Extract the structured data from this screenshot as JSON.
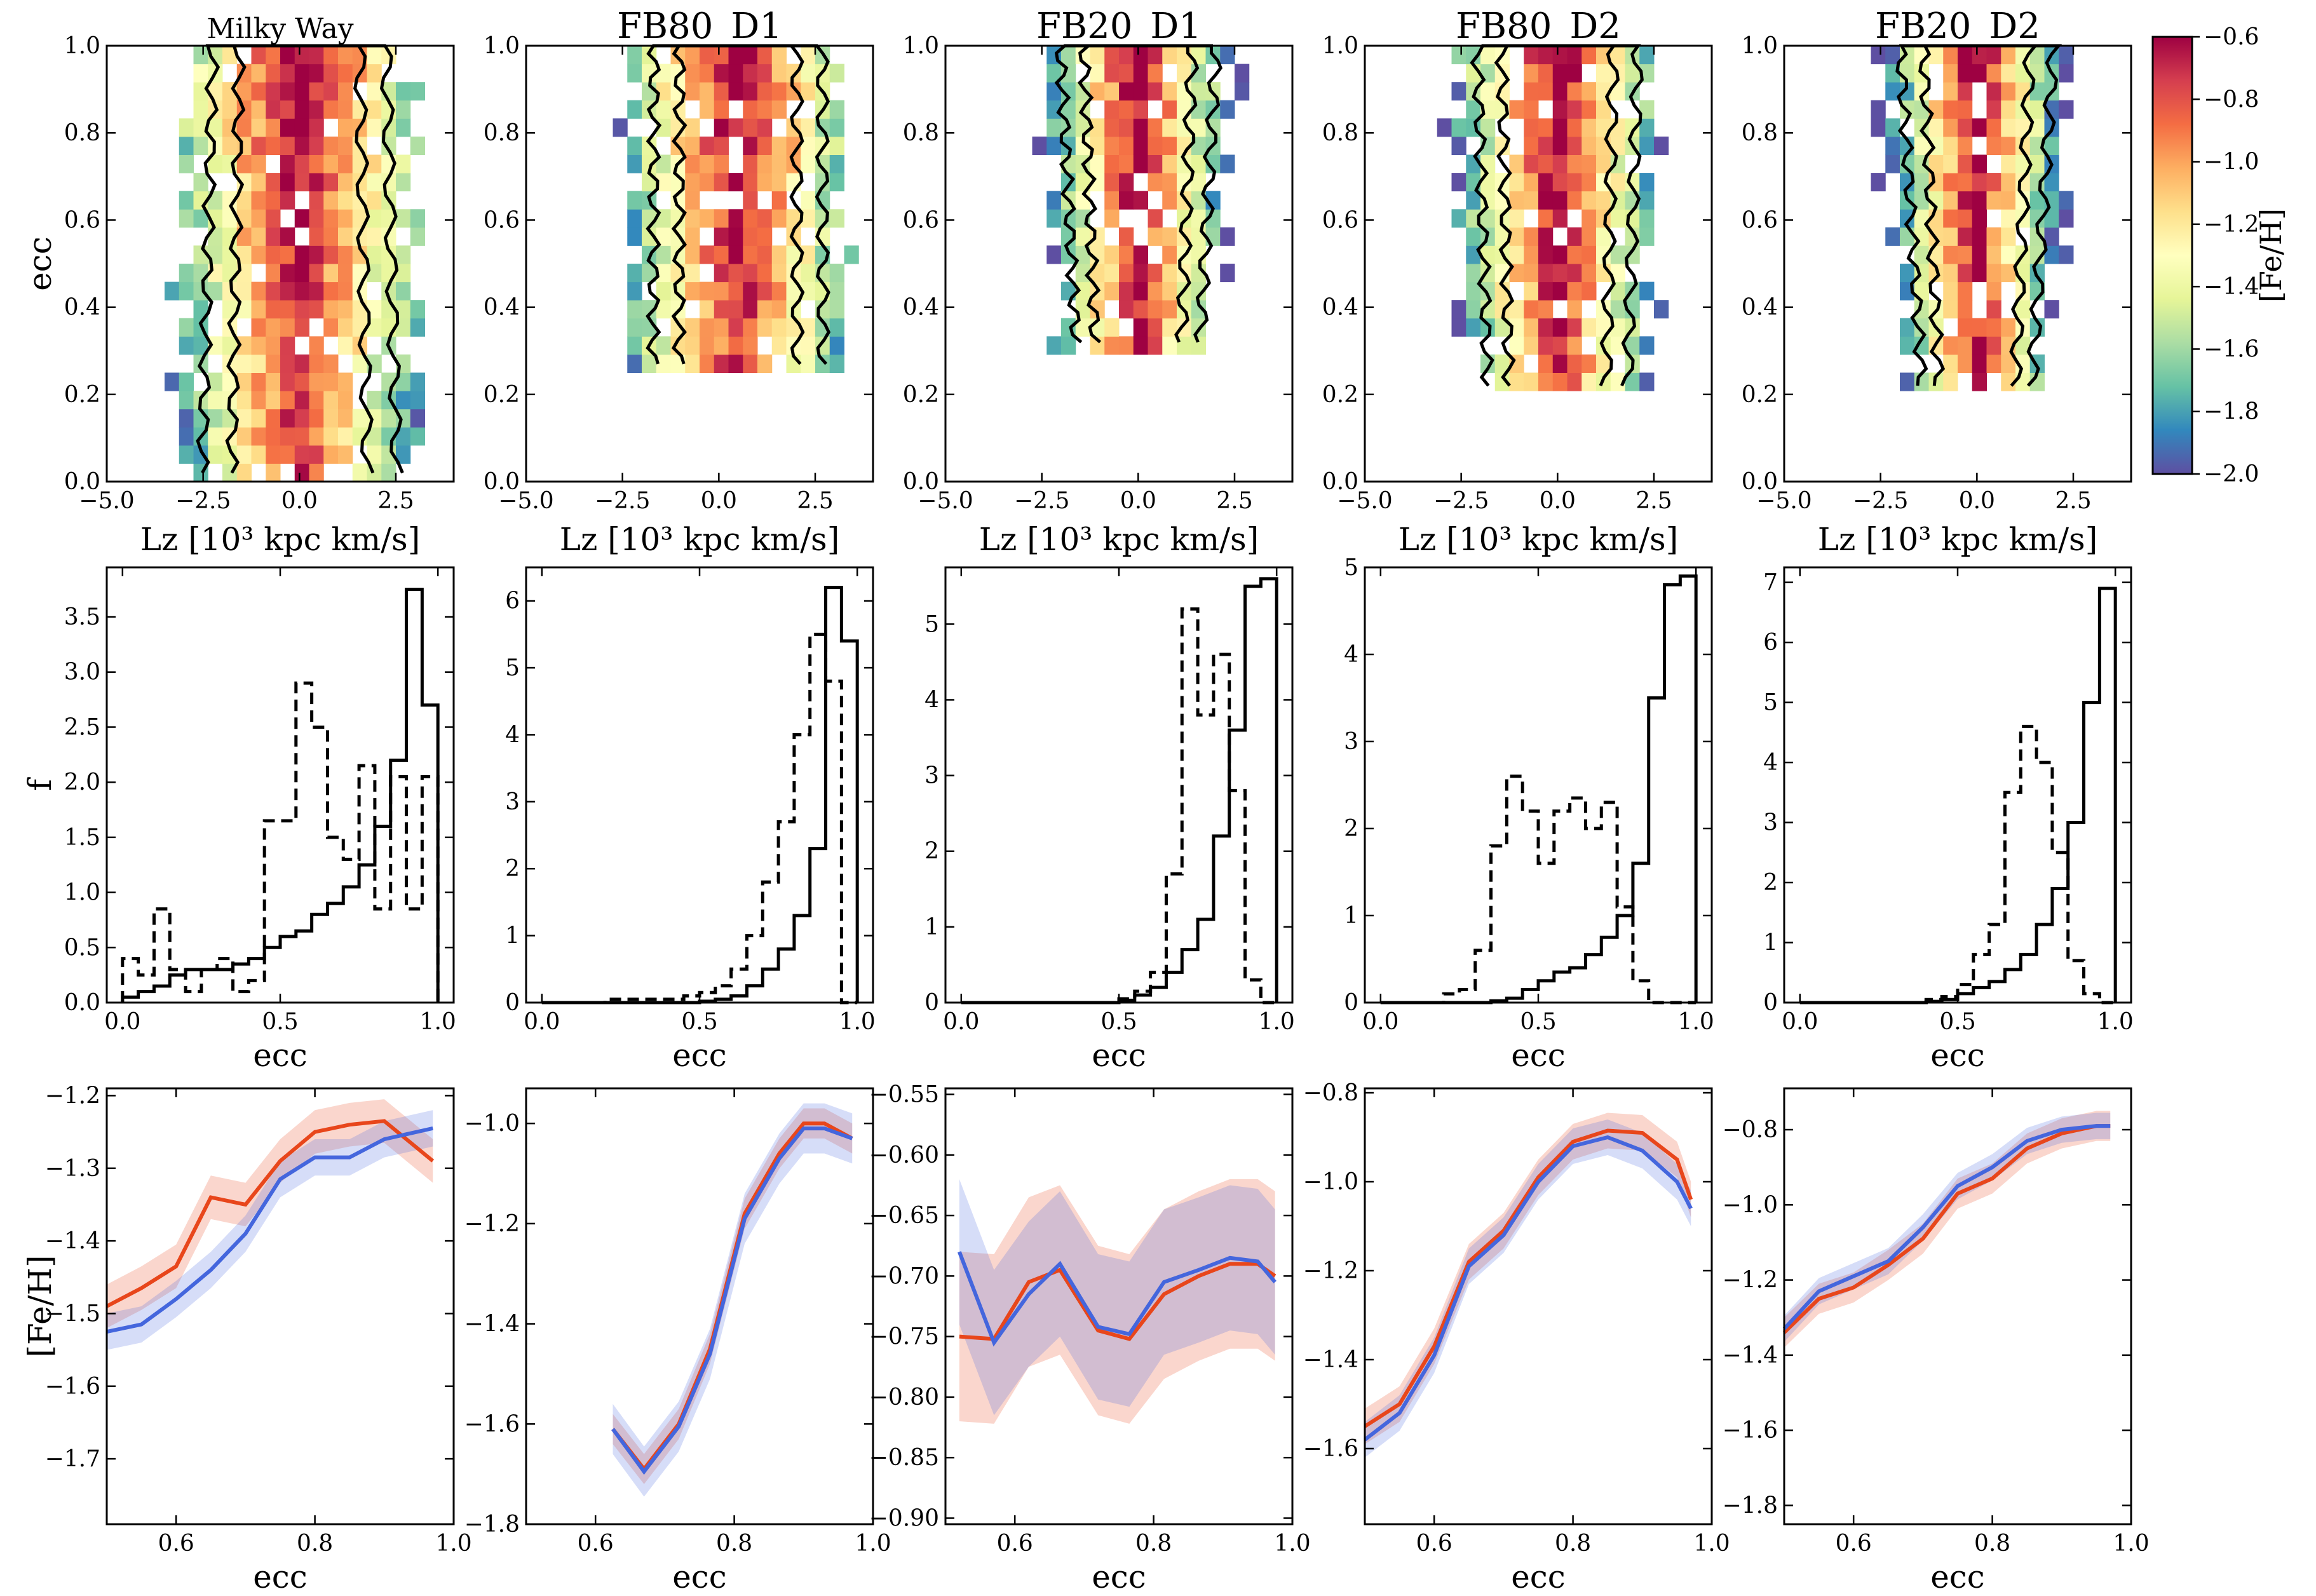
{
  "figure": {
    "colorbar": {
      "label": "[Fe/H]",
      "ticks": [
        "-0.6",
        "-0.8",
        "-1.0",
        "-1.2",
        "-1.4",
        "-1.6",
        "-1.8",
        "-2.0"
      ],
      "range": [
        -2.0,
        -0.6
      ]
    }
  },
  "chart_data": [
    {
      "type": "heatmap",
      "title": "Milky Way",
      "xlabel": "Lz [10³ kpc km/s]",
      "ylabel": "ecc",
      "xlim": [
        -5,
        4
      ],
      "ylim": [
        0,
        1
      ],
      "xticks": [
        "−5.0",
        "−2.5",
        "0.0",
        "2.5"
      ],
      "yticks": [
        "0.0",
        "0.2",
        "0.4",
        "0.6",
        "0.8",
        "1.0"
      ],
      "profile": {
        "center": 0.0,
        "width": 1.6,
        "emin": 0.0
      }
    },
    {
      "type": "heatmap",
      "title": "FB80_D1",
      "xlabel": "Lz [10³ kpc km/s]",
      "ylabel": "",
      "xlim": [
        -5,
        4
      ],
      "ylim": [
        0,
        1
      ],
      "xticks": [
        "−5.0",
        "−2.5",
        "0.0",
        "2.5"
      ],
      "yticks": [
        "0.0",
        "0.2",
        "0.4",
        "0.6",
        "0.8",
        "1.0"
      ],
      "profile": {
        "center": 0.5,
        "width": 1.4,
        "emin": 0.25
      }
    },
    {
      "type": "heatmap",
      "title": "FB20_D1",
      "xlabel": "Lz [10³ kpc km/s]",
      "ylabel": "",
      "xlim": [
        -5,
        4
      ],
      "ylim": [
        0,
        1
      ],
      "xticks": [
        "−5.0",
        "−2.5",
        "0.0",
        "2.5"
      ],
      "yticks": [
        "0.0",
        "0.2",
        "0.4",
        "0.6",
        "0.8",
        "1.0"
      ],
      "profile": {
        "center": 0.0,
        "width": 0.9,
        "emin": 0.3
      }
    },
    {
      "type": "heatmap",
      "title": "FB80_D2",
      "xlabel": "Lz [10³ kpc km/s]",
      "ylabel": "",
      "xlim": [
        -5,
        4
      ],
      "ylim": [
        0,
        1
      ],
      "xticks": [
        "−5.0",
        "−2.5",
        "0.0",
        "2.5"
      ],
      "yticks": [
        "0.0",
        "0.2",
        "0.4",
        "0.6",
        "0.8",
        "1.0"
      ],
      "profile": {
        "center": 0.0,
        "width": 1.1,
        "emin": 0.2
      }
    },
    {
      "type": "heatmap",
      "title": "FB20_D2",
      "xlabel": "Lz [10³ kpc km/s]",
      "ylabel": "",
      "xlim": [
        -5,
        4
      ],
      "ylim": [
        0,
        1
      ],
      "xticks": [
        "−5.0",
        "−2.5",
        "0.0",
        "2.5"
      ],
      "yticks": [
        "0.0",
        "0.2",
        "0.4",
        "0.6",
        "0.8",
        "1.0"
      ],
      "profile": {
        "center": 0.0,
        "width": 0.8,
        "emin": 0.2
      }
    },
    {
      "type": "histogram",
      "xlabel": "ecc",
      "ylabel": "f",
      "xlim": [
        -0.05,
        1.05
      ],
      "ylim": [
        0,
        3.95
      ],
      "xticks": [
        "0.0",
        "0.5",
        "1.0"
      ],
      "yticks": [
        "0.0",
        "0.5",
        "1.0",
        "1.5",
        "2.0",
        "2.5",
        "3.0",
        "3.5"
      ],
      "bin_edges": [
        0.0,
        0.05,
        0.1,
        0.15,
        0.2,
        0.25,
        0.3,
        0.35,
        0.4,
        0.45,
        0.5,
        0.55,
        0.6,
        0.65,
        0.7,
        0.75,
        0.8,
        0.85,
        0.9,
        0.95,
        1.0
      ],
      "series": [
        {
          "name": "solid",
          "style": "solid",
          "values": [
            0.05,
            0.1,
            0.15,
            0.25,
            0.3,
            0.3,
            0.3,
            0.35,
            0.4,
            0.5,
            0.6,
            0.65,
            0.8,
            0.9,
            1.05,
            1.25,
            1.6,
            2.2,
            3.75,
            2.7
          ]
        },
        {
          "name": "dashed",
          "style": "dashed",
          "values": [
            0.4,
            0.25,
            0.85,
            0.3,
            0.1,
            0.3,
            0.4,
            0.1,
            0.2,
            1.65,
            1.65,
            2.9,
            2.5,
            1.5,
            1.3,
            2.15,
            0.85,
            2.05,
            0.85,
            2.05
          ]
        }
      ]
    },
    {
      "type": "histogram",
      "xlabel": "ecc",
      "ylabel": "",
      "xlim": [
        -0.05,
        1.05
      ],
      "ylim": [
        0,
        6.5
      ],
      "xticks": [
        "0.0",
        "0.5",
        "1.0"
      ],
      "yticks": [
        "0",
        "1",
        "2",
        "3",
        "4",
        "5",
        "6"
      ],
      "bin_edges": [
        0.0,
        0.05,
        0.1,
        0.15,
        0.2,
        0.25,
        0.3,
        0.35,
        0.4,
        0.45,
        0.5,
        0.55,
        0.6,
        0.65,
        0.7,
        0.75,
        0.8,
        0.85,
        0.9,
        0.95,
        1.0
      ],
      "series": [
        {
          "name": "solid",
          "style": "solid",
          "values": [
            0,
            0,
            0,
            0,
            0,
            0,
            0,
            0,
            0,
            0,
            0.02,
            0.05,
            0.1,
            0.25,
            0.5,
            0.8,
            1.3,
            2.3,
            6.2,
            5.4
          ]
        },
        {
          "name": "dashed",
          "style": "dashed",
          "values": [
            0,
            0,
            0,
            0,
            0.05,
            0.05,
            0.05,
            0.05,
            0.05,
            0.1,
            0.15,
            0.25,
            0.5,
            1.0,
            1.8,
            2.7,
            4.0,
            5.5,
            4.8,
            0
          ]
        }
      ]
    },
    {
      "type": "histogram",
      "xlabel": "ecc",
      "ylabel": "",
      "xlim": [
        -0.05,
        1.05
      ],
      "ylim": [
        0,
        5.75
      ],
      "xticks": [
        "0.0",
        "0.5",
        "1.0"
      ],
      "yticks": [
        "0",
        "1",
        "2",
        "3",
        "4",
        "5"
      ],
      "bin_edges": [
        0.0,
        0.05,
        0.1,
        0.15,
        0.2,
        0.25,
        0.3,
        0.35,
        0.4,
        0.45,
        0.5,
        0.55,
        0.6,
        0.65,
        0.7,
        0.75,
        0.8,
        0.85,
        0.9,
        0.95,
        1.0
      ],
      "series": [
        {
          "name": "solid",
          "style": "solid",
          "values": [
            0,
            0,
            0,
            0,
            0,
            0,
            0,
            0,
            0,
            0,
            0.03,
            0.1,
            0.2,
            0.4,
            0.7,
            1.1,
            2.2,
            3.6,
            5.5,
            5.6
          ]
        },
        {
          "name": "dashed",
          "style": "dashed",
          "values": [
            0,
            0,
            0,
            0,
            0,
            0,
            0,
            0,
            0,
            0,
            0.05,
            0.15,
            0.4,
            1.7,
            5.2,
            3.8,
            4.6,
            2.8,
            0.3,
            0
          ]
        }
      ]
    },
    {
      "type": "histogram",
      "xlabel": "ecc",
      "ylabel": "",
      "xlim": [
        -0.05,
        1.05
      ],
      "ylim": [
        0,
        5.0
      ],
      "xticks": [
        "0.0",
        "0.5",
        "1.0"
      ],
      "yticks": [
        "0",
        "1",
        "2",
        "3",
        "4",
        "5"
      ],
      "bin_edges": [
        0.0,
        0.05,
        0.1,
        0.15,
        0.2,
        0.25,
        0.3,
        0.35,
        0.4,
        0.45,
        0.5,
        0.55,
        0.6,
        0.65,
        0.7,
        0.75,
        0.8,
        0.85,
        0.9,
        0.95,
        1.0
      ],
      "series": [
        {
          "name": "solid",
          "style": "solid",
          "values": [
            0,
            0,
            0,
            0,
            0,
            0,
            0,
            0.02,
            0.05,
            0.15,
            0.25,
            0.35,
            0.4,
            0.55,
            0.75,
            1.0,
            1.6,
            3.5,
            4.8,
            4.9
          ]
        },
        {
          "name": "dashed",
          "style": "dashed",
          "values": [
            0,
            0,
            0,
            0,
            0.1,
            0.15,
            0.6,
            1.8,
            2.6,
            2.2,
            1.6,
            2.2,
            2.35,
            2.0,
            2.3,
            1.1,
            0.25,
            0,
            0,
            0
          ]
        }
      ]
    },
    {
      "type": "histogram",
      "xlabel": "ecc",
      "ylabel": "",
      "xlim": [
        -0.05,
        1.05
      ],
      "ylim": [
        0,
        7.25
      ],
      "xticks": [
        "0.0",
        "0.5",
        "1.0"
      ],
      "yticks": [
        "0",
        "1",
        "2",
        "3",
        "4",
        "5",
        "6",
        "7"
      ],
      "bin_edges": [
        0.0,
        0.05,
        0.1,
        0.15,
        0.2,
        0.25,
        0.3,
        0.35,
        0.4,
        0.45,
        0.5,
        0.55,
        0.6,
        0.65,
        0.7,
        0.75,
        0.8,
        0.85,
        0.9,
        0.95,
        1.0
      ],
      "series": [
        {
          "name": "solid",
          "style": "solid",
          "values": [
            0,
            0,
            0,
            0,
            0,
            0,
            0,
            0,
            0.02,
            0.05,
            0.15,
            0.25,
            0.35,
            0.55,
            0.8,
            1.3,
            1.9,
            3.0,
            5.0,
            6.9
          ]
        },
        {
          "name": "dashed",
          "style": "dashed",
          "values": [
            0,
            0,
            0,
            0,
            0,
            0,
            0,
            0,
            0.05,
            0.1,
            0.3,
            0.8,
            1.3,
            3.5,
            4.6,
            4.0,
            2.5,
            0.7,
            0.15,
            0
          ]
        }
      ]
    },
    {
      "type": "line",
      "xlabel": "ecc",
      "ylabel": "[Fe/H]",
      "xlim": [
        0.5,
        1.0
      ],
      "ylim": [
        -1.79,
        -1.19
      ],
      "xticks": [
        "0.6",
        "0.8",
        "1.0"
      ],
      "yticks": [
        "−1.2",
        "−1.3",
        "−1.4",
        "−1.5",
        "−1.6",
        "−1.7"
      ],
      "x": [
        0.5,
        0.55,
        0.6,
        0.65,
        0.7,
        0.75,
        0.8,
        0.85,
        0.9,
        0.97
      ],
      "series": [
        {
          "name": "red",
          "color": "#e8461b",
          "values": [
            -1.49,
            -1.465,
            -1.435,
            -1.34,
            -1.35,
            -1.29,
            -1.25,
            -1.24,
            -1.235,
            -1.29
          ],
          "err": 0.03
        },
        {
          "name": "blue",
          "color": "#4466dd",
          "values": [
            -1.525,
            -1.515,
            -1.48,
            -1.44,
            -1.39,
            -1.315,
            -1.285,
            -1.285,
            -1.26,
            -1.245
          ],
          "err": 0.025
        }
      ]
    },
    {
      "type": "line",
      "xlabel": "ecc",
      "ylabel": "",
      "xlim": [
        0.5,
        1.0
      ],
      "ylim": [
        -1.8,
        -0.93
      ],
      "xticks": [
        "0.6",
        "0.8",
        "1.0"
      ],
      "yticks": [
        "−1.0",
        "−1.2",
        "−1.4",
        "−1.6",
        "−1.8"
      ],
      "x": [
        0.625,
        0.67,
        0.72,
        0.765,
        0.815,
        0.865,
        0.9,
        0.93,
        0.97
      ],
      "series": [
        {
          "name": "red",
          "color": "#e8461b",
          "values": [
            -1.61,
            -1.69,
            -1.6,
            -1.45,
            -1.18,
            -1.06,
            -1.0,
            -1.0,
            -1.03
          ],
          "err": 0.03
        },
        {
          "name": "blue",
          "color": "#4466dd",
          "values": [
            -1.61,
            -1.695,
            -1.605,
            -1.46,
            -1.19,
            -1.07,
            -1.01,
            -1.01,
            -1.03
          ],
          "err": 0.05
        }
      ]
    },
    {
      "type": "line",
      "xlabel": "ecc",
      "ylabel": "",
      "xlim": [
        0.5,
        1.0
      ],
      "ylim": [
        -0.905,
        -0.545
      ],
      "xticks": [
        "0.6",
        "0.8",
        "1.0"
      ],
      "yticks": [
        "−0.55",
        "−0.60",
        "−0.65",
        "−0.70",
        "−0.75",
        "−0.80",
        "−0.85",
        "−0.90"
      ],
      "x": [
        0.52,
        0.57,
        0.62,
        0.665,
        0.72,
        0.765,
        0.815,
        0.865,
        0.91,
        0.95,
        0.975
      ],
      "series": [
        {
          "name": "red",
          "color": "#e8461b",
          "values": [
            -0.75,
            -0.752,
            -0.705,
            -0.695,
            -0.745,
            -0.752,
            -0.715,
            -0.7,
            -0.69,
            -0.69,
            -0.7
          ],
          "err": 0.07
        },
        {
          "name": "blue",
          "color": "#4466dd",
          "values": [
            -0.68,
            -0.755,
            -0.715,
            -0.69,
            -0.742,
            -0.748,
            -0.705,
            -0.695,
            -0.685,
            -0.688,
            -0.705
          ],
          "err": 0.06
        }
      ]
    },
    {
      "type": "line",
      "xlabel": "ecc",
      "ylabel": "",
      "xlim": [
        0.5,
        1.0
      ],
      "ylim": [
        -1.77,
        -0.79
      ],
      "xticks": [
        "0.6",
        "0.8",
        "1.0"
      ],
      "yticks": [
        "−0.8",
        "−1.0",
        "−1.2",
        "−1.4",
        "−1.6"
      ],
      "x": [
        0.5,
        0.55,
        0.6,
        0.65,
        0.7,
        0.75,
        0.8,
        0.85,
        0.9,
        0.95,
        0.97
      ],
      "series": [
        {
          "name": "red",
          "color": "#e8461b",
          "values": [
            -1.55,
            -1.5,
            -1.37,
            -1.18,
            -1.11,
            -0.99,
            -0.91,
            -0.885,
            -0.89,
            -0.95,
            -1.04
          ],
          "err": 0.04
        },
        {
          "name": "blue",
          "color": "#4466dd",
          "values": [
            -1.58,
            -1.52,
            -1.39,
            -1.19,
            -1.12,
            -1.0,
            -0.92,
            -0.9,
            -0.93,
            -1.0,
            -1.06
          ],
          "err": 0.04
        }
      ]
    },
    {
      "type": "line",
      "xlabel": "ecc",
      "ylabel": "",
      "xlim": [
        0.5,
        1.0
      ],
      "ylim": [
        -1.85,
        -0.69
      ],
      "xticks": [
        "0.6",
        "0.8",
        "1.0"
      ],
      "yticks": [
        "−0.8",
        "−1.0",
        "−1.2",
        "−1.4",
        "−1.6",
        "−1.8"
      ],
      "x": [
        0.5,
        0.55,
        0.6,
        0.65,
        0.7,
        0.75,
        0.8,
        0.85,
        0.9,
        0.95,
        0.97
      ],
      "series": [
        {
          "name": "red",
          "color": "#e8461b",
          "values": [
            -1.34,
            -1.25,
            -1.22,
            -1.16,
            -1.09,
            -0.97,
            -0.93,
            -0.85,
            -0.81,
            -0.79,
            -0.79
          ],
          "err": 0.04
        },
        {
          "name": "blue",
          "color": "#4466dd",
          "values": [
            -1.33,
            -1.23,
            -1.19,
            -1.15,
            -1.06,
            -0.95,
            -0.9,
            -0.83,
            -0.8,
            -0.79,
            -0.79
          ],
          "err": 0.035
        }
      ]
    }
  ]
}
